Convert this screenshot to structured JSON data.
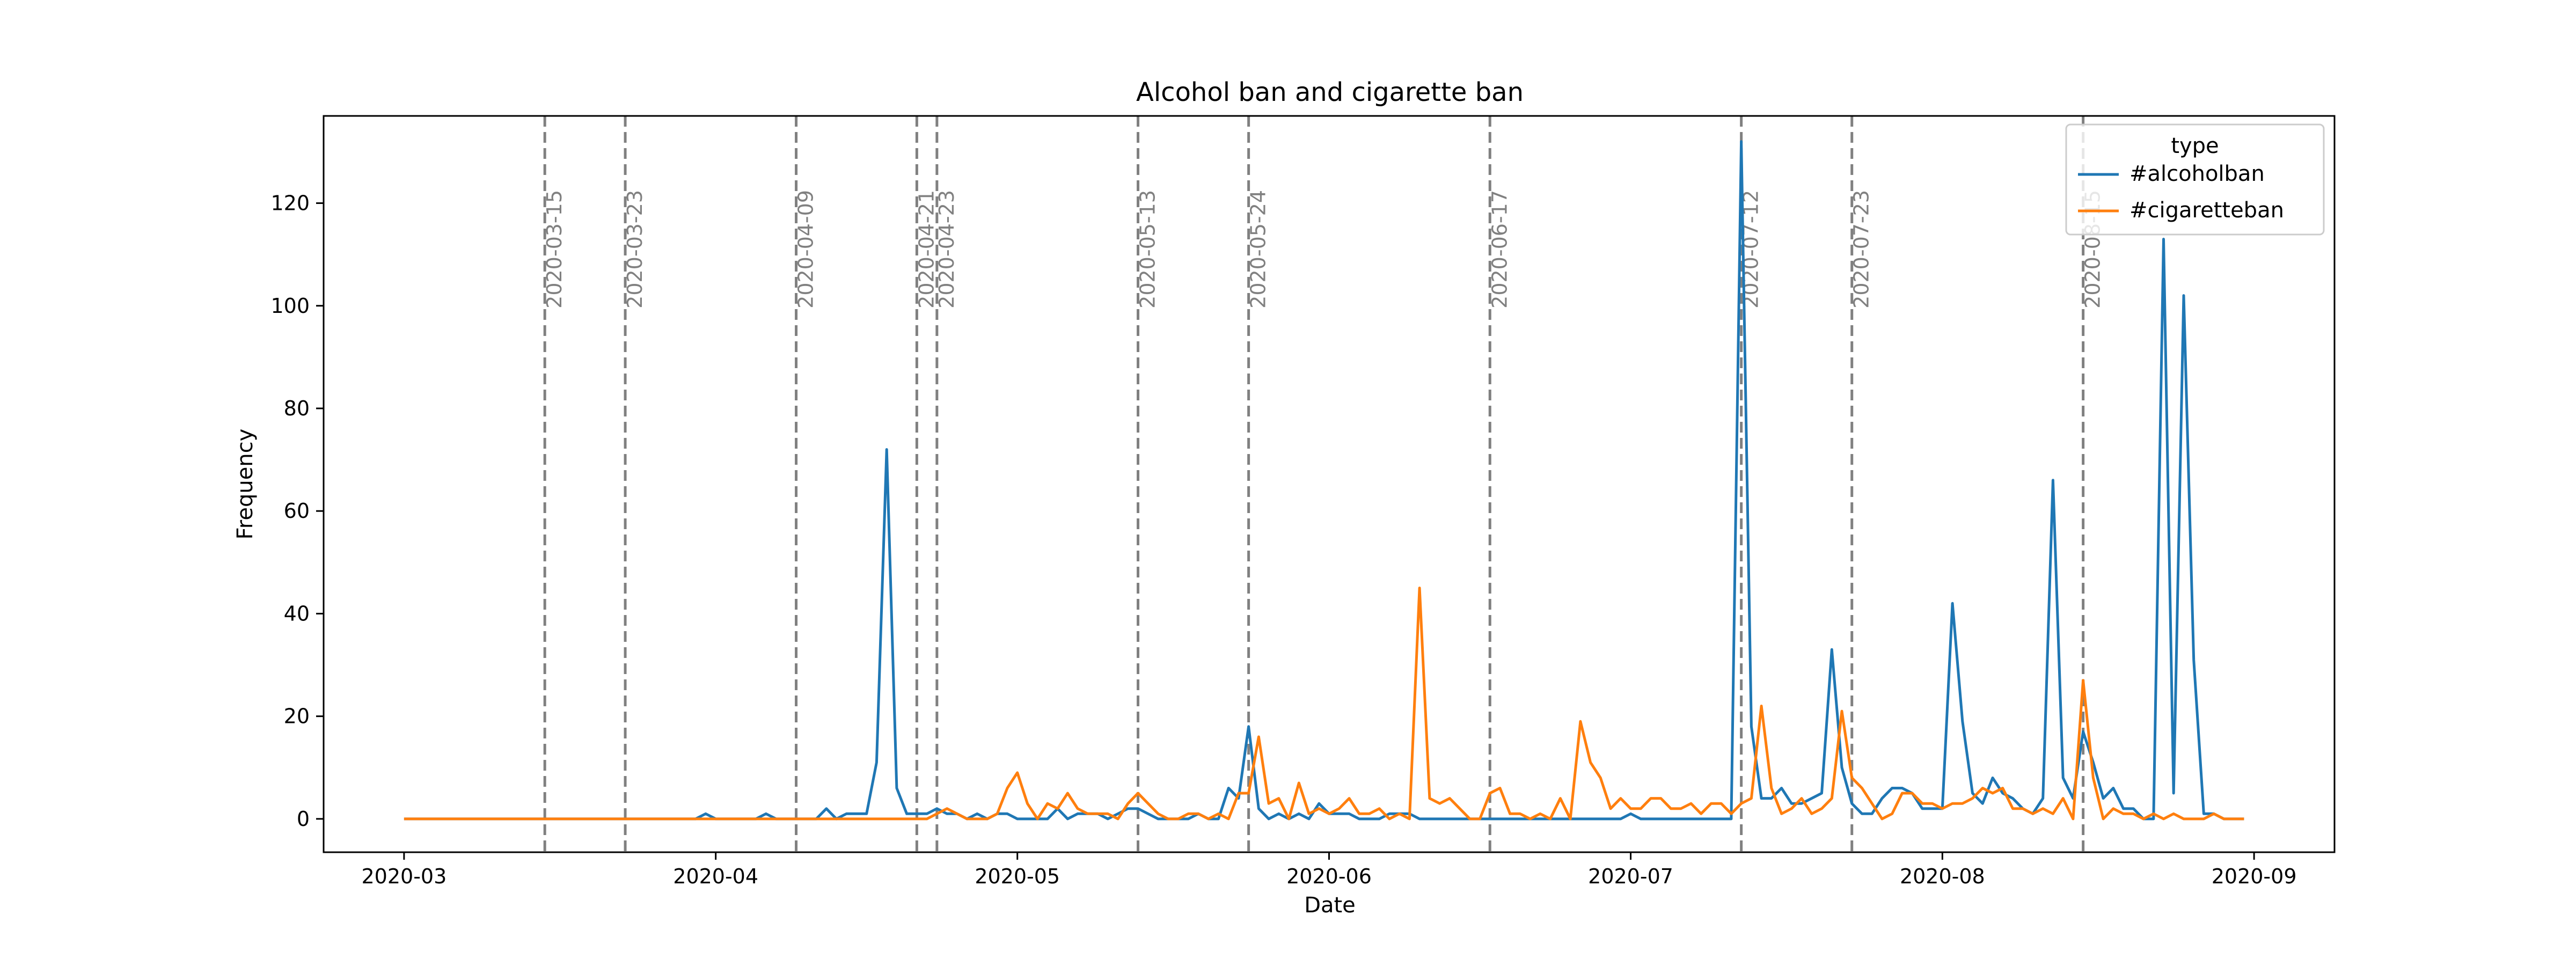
{
  "chart_data": {
    "type": "line",
    "title": "Alcohol ban and cigarette ban",
    "xlabel": "Date",
    "ylabel": "Frequency",
    "x_start": "2020-03-01",
    "x_end": "2020-08-31",
    "xlim": [
      "2020-02-22",
      "2020-09-09"
    ],
    "ylim": [
      -6.5,
      137
    ],
    "x_ticks": [
      "2020-03",
      "2020-04",
      "2020-05",
      "2020-06",
      "2020-07",
      "2020-08",
      "2020-09"
    ],
    "y_ticks": [
      0,
      20,
      40,
      60,
      80,
      100,
      120
    ],
    "grid": false,
    "legend": {
      "title": "type",
      "placement": "top-right"
    },
    "events": [
      {
        "date": "2020-03-15",
        "label": "2020-03-15"
      },
      {
        "date": "2020-03-23",
        "label": "2020-03-23"
      },
      {
        "date": "2020-04-09",
        "label": "2020-04-09"
      },
      {
        "date": "2020-04-21",
        "label": "2020-04-21"
      },
      {
        "date": "2020-04-23",
        "label": "2020-04-23"
      },
      {
        "date": "2020-05-13",
        "label": "2020-05-13"
      },
      {
        "date": "2020-05-24",
        "label": "2020-05-24"
      },
      {
        "date": "2020-06-17",
        "label": "2020-06-17"
      },
      {
        "date": "2020-07-12",
        "label": "2020-07-12"
      },
      {
        "date": "2020-07-23",
        "label": "2020-07-23"
      },
      {
        "date": "2020-08-15",
        "label": "2020-08-15"
      }
    ],
    "series": [
      {
        "name": "#alcoholban",
        "color": "#1f77b4",
        "points": [
          [
            "2020-03-01",
            0
          ],
          [
            "2020-03-30",
            0
          ],
          [
            "2020-03-31",
            1
          ],
          [
            "2020-04-01",
            0
          ],
          [
            "2020-04-05",
            0
          ],
          [
            "2020-04-06",
            1
          ],
          [
            "2020-04-07",
            0
          ],
          [
            "2020-04-11",
            0
          ],
          [
            "2020-04-12",
            2
          ],
          [
            "2020-04-13",
            0
          ],
          [
            "2020-04-14",
            1
          ],
          [
            "2020-04-15",
            1
          ],
          [
            "2020-04-16",
            1
          ],
          [
            "2020-04-17",
            11
          ],
          [
            "2020-04-18",
            72
          ],
          [
            "2020-04-19",
            6
          ],
          [
            "2020-04-20",
            1
          ],
          [
            "2020-04-21",
            1
          ],
          [
            "2020-04-22",
            1
          ],
          [
            "2020-04-23",
            2
          ],
          [
            "2020-04-24",
            1
          ],
          [
            "2020-04-25",
            1
          ],
          [
            "2020-04-26",
            0
          ],
          [
            "2020-04-27",
            1
          ],
          [
            "2020-04-28",
            0
          ],
          [
            "2020-04-29",
            1
          ],
          [
            "2020-04-30",
            1
          ],
          [
            "2020-05-01",
            0
          ],
          [
            "2020-05-02",
            0
          ],
          [
            "2020-05-03",
            0
          ],
          [
            "2020-05-04",
            0
          ],
          [
            "2020-05-05",
            2
          ],
          [
            "2020-05-06",
            0
          ],
          [
            "2020-05-07",
            1
          ],
          [
            "2020-05-08",
            1
          ],
          [
            "2020-05-09",
            1
          ],
          [
            "2020-05-10",
            0
          ],
          [
            "2020-05-11",
            1
          ],
          [
            "2020-05-12",
            2
          ],
          [
            "2020-05-13",
            2
          ],
          [
            "2020-05-14",
            1
          ],
          [
            "2020-05-15",
            0
          ],
          [
            "2020-05-16",
            0
          ],
          [
            "2020-05-17",
            0
          ],
          [
            "2020-05-18",
            0
          ],
          [
            "2020-05-19",
            1
          ],
          [
            "2020-05-20",
            0
          ],
          [
            "2020-05-21",
            0
          ],
          [
            "2020-05-22",
            6
          ],
          [
            "2020-05-23",
            4
          ],
          [
            "2020-05-24",
            18
          ],
          [
            "2020-05-25",
            2
          ],
          [
            "2020-05-26",
            0
          ],
          [
            "2020-05-27",
            1
          ],
          [
            "2020-05-28",
            0
          ],
          [
            "2020-05-29",
            1
          ],
          [
            "2020-05-30",
            0
          ],
          [
            "2020-05-31",
            3
          ],
          [
            "2020-06-01",
            1
          ],
          [
            "2020-06-02",
            1
          ],
          [
            "2020-06-03",
            1
          ],
          [
            "2020-06-04",
            0
          ],
          [
            "2020-06-05",
            0
          ],
          [
            "2020-06-06",
            0
          ],
          [
            "2020-06-07",
            1
          ],
          [
            "2020-06-08",
            1
          ],
          [
            "2020-06-09",
            1
          ],
          [
            "2020-06-10",
            0
          ],
          [
            "2020-06-30",
            0
          ],
          [
            "2020-07-01",
            1
          ],
          [
            "2020-07-02",
            0
          ],
          [
            "2020-07-10",
            0
          ],
          [
            "2020-07-11",
            0
          ],
          [
            "2020-07-12",
            132
          ],
          [
            "2020-07-13",
            18
          ],
          [
            "2020-07-14",
            4
          ],
          [
            "2020-07-15",
            4
          ],
          [
            "2020-07-16",
            6
          ],
          [
            "2020-07-17",
            3
          ],
          [
            "2020-07-18",
            3
          ],
          [
            "2020-07-19",
            4
          ],
          [
            "2020-07-20",
            5
          ],
          [
            "2020-07-21",
            33
          ],
          [
            "2020-07-22",
            10
          ],
          [
            "2020-07-23",
            3
          ],
          [
            "2020-07-24",
            1
          ],
          [
            "2020-07-25",
            1
          ],
          [
            "2020-07-26",
            4
          ],
          [
            "2020-07-27",
            6
          ],
          [
            "2020-07-28",
            6
          ],
          [
            "2020-07-29",
            5
          ],
          [
            "2020-07-30",
            2
          ],
          [
            "2020-07-31",
            2
          ],
          [
            "2020-08-01",
            2
          ],
          [
            "2020-08-02",
            42
          ],
          [
            "2020-08-03",
            19
          ],
          [
            "2020-08-04",
            5
          ],
          [
            "2020-08-05",
            3
          ],
          [
            "2020-08-06",
            8
          ],
          [
            "2020-08-07",
            5
          ],
          [
            "2020-08-08",
            4
          ],
          [
            "2020-08-09",
            2
          ],
          [
            "2020-08-10",
            1
          ],
          [
            "2020-08-11",
            4
          ],
          [
            "2020-08-12",
            66
          ],
          [
            "2020-08-13",
            8
          ],
          [
            "2020-08-14",
            4
          ],
          [
            "2020-08-15",
            17
          ],
          [
            "2020-08-16",
            11
          ],
          [
            "2020-08-17",
            4
          ],
          [
            "2020-08-18",
            6
          ],
          [
            "2020-08-19",
            2
          ],
          [
            "2020-08-20",
            2
          ],
          [
            "2020-08-21",
            0
          ],
          [
            "2020-08-22",
            0
          ],
          [
            "2020-08-23",
            113
          ],
          [
            "2020-08-24",
            5
          ],
          [
            "2020-08-25",
            102
          ],
          [
            "2020-08-26",
            31
          ],
          [
            "2020-08-27",
            1
          ],
          [
            "2020-08-28",
            1
          ],
          [
            "2020-08-29",
            0
          ],
          [
            "2020-08-31",
            0
          ]
        ]
      },
      {
        "name": "#cigaretteban",
        "color": "#ff7f0e",
        "points": [
          [
            "2020-03-01",
            0
          ],
          [
            "2020-04-21",
            0
          ],
          [
            "2020-04-22",
            0
          ],
          [
            "2020-04-23",
            1
          ],
          [
            "2020-04-24",
            2
          ],
          [
            "2020-04-25",
            1
          ],
          [
            "2020-04-26",
            0
          ],
          [
            "2020-04-27",
            0
          ],
          [
            "2020-04-28",
            0
          ],
          [
            "2020-04-29",
            1
          ],
          [
            "2020-04-30",
            6
          ],
          [
            "2020-05-01",
            9
          ],
          [
            "2020-05-02",
            3
          ],
          [
            "2020-05-03",
            0
          ],
          [
            "2020-05-04",
            3
          ],
          [
            "2020-05-05",
            2
          ],
          [
            "2020-05-06",
            5
          ],
          [
            "2020-05-07",
            2
          ],
          [
            "2020-05-08",
            1
          ],
          [
            "2020-05-09",
            1
          ],
          [
            "2020-05-10",
            1
          ],
          [
            "2020-05-11",
            0
          ],
          [
            "2020-05-12",
            3
          ],
          [
            "2020-05-13",
            5
          ],
          [
            "2020-05-14",
            3
          ],
          [
            "2020-05-15",
            1
          ],
          [
            "2020-05-16",
            0
          ],
          [
            "2020-05-17",
            0
          ],
          [
            "2020-05-18",
            1
          ],
          [
            "2020-05-19",
            1
          ],
          [
            "2020-05-20",
            0
          ],
          [
            "2020-05-21",
            1
          ],
          [
            "2020-05-22",
            0
          ],
          [
            "2020-05-23",
            5
          ],
          [
            "2020-05-24",
            5
          ],
          [
            "2020-05-25",
            16
          ],
          [
            "2020-05-26",
            3
          ],
          [
            "2020-05-27",
            4
          ],
          [
            "2020-05-28",
            0
          ],
          [
            "2020-05-29",
            7
          ],
          [
            "2020-05-30",
            1
          ],
          [
            "2020-05-31",
            2
          ],
          [
            "2020-06-01",
            1
          ],
          [
            "2020-06-02",
            2
          ],
          [
            "2020-06-03",
            4
          ],
          [
            "2020-06-04",
            1
          ],
          [
            "2020-06-05",
            1
          ],
          [
            "2020-06-06",
            2
          ],
          [
            "2020-06-07",
            0
          ],
          [
            "2020-06-08",
            1
          ],
          [
            "2020-06-09",
            0
          ],
          [
            "2020-06-10",
            45
          ],
          [
            "2020-06-11",
            4
          ],
          [
            "2020-06-12",
            3
          ],
          [
            "2020-06-13",
            4
          ],
          [
            "2020-06-14",
            2
          ],
          [
            "2020-06-15",
            0
          ],
          [
            "2020-06-16",
            0
          ],
          [
            "2020-06-17",
            5
          ],
          [
            "2020-06-18",
            6
          ],
          [
            "2020-06-19",
            1
          ],
          [
            "2020-06-20",
            1
          ],
          [
            "2020-06-21",
            0
          ],
          [
            "2020-06-22",
            1
          ],
          [
            "2020-06-23",
            0
          ],
          [
            "2020-06-24",
            4
          ],
          [
            "2020-06-25",
            0
          ],
          [
            "2020-06-26",
            19
          ],
          [
            "2020-06-27",
            11
          ],
          [
            "2020-06-28",
            8
          ],
          [
            "2020-06-29",
            2
          ],
          [
            "2020-06-30",
            4
          ],
          [
            "2020-07-01",
            2
          ],
          [
            "2020-07-02",
            2
          ],
          [
            "2020-07-03",
            4
          ],
          [
            "2020-07-04",
            4
          ],
          [
            "2020-07-05",
            2
          ],
          [
            "2020-07-06",
            2
          ],
          [
            "2020-07-07",
            3
          ],
          [
            "2020-07-08",
            1
          ],
          [
            "2020-07-09",
            3
          ],
          [
            "2020-07-10",
            3
          ],
          [
            "2020-07-11",
            1
          ],
          [
            "2020-07-12",
            3
          ],
          [
            "2020-07-13",
            4
          ],
          [
            "2020-07-14",
            22
          ],
          [
            "2020-07-15",
            6
          ],
          [
            "2020-07-16",
            1
          ],
          [
            "2020-07-17",
            2
          ],
          [
            "2020-07-18",
            4
          ],
          [
            "2020-07-19",
            1
          ],
          [
            "2020-07-20",
            2
          ],
          [
            "2020-07-21",
            4
          ],
          [
            "2020-07-22",
            21
          ],
          [
            "2020-07-23",
            8
          ],
          [
            "2020-07-24",
            6
          ],
          [
            "2020-07-25",
            3
          ],
          [
            "2020-07-26",
            0
          ],
          [
            "2020-07-27",
            1
          ],
          [
            "2020-07-28",
            5
          ],
          [
            "2020-07-29",
            5
          ],
          [
            "2020-07-30",
            3
          ],
          [
            "2020-07-31",
            3
          ],
          [
            "2020-08-01",
            2
          ],
          [
            "2020-08-02",
            3
          ],
          [
            "2020-08-03",
            3
          ],
          [
            "2020-08-04",
            4
          ],
          [
            "2020-08-05",
            6
          ],
          [
            "2020-08-06",
            5
          ],
          [
            "2020-08-07",
            6
          ],
          [
            "2020-08-08",
            2
          ],
          [
            "2020-08-09",
            2
          ],
          [
            "2020-08-10",
            1
          ],
          [
            "2020-08-11",
            2
          ],
          [
            "2020-08-12",
            1
          ],
          [
            "2020-08-13",
            4
          ],
          [
            "2020-08-14",
            0
          ],
          [
            "2020-08-15",
            27
          ],
          [
            "2020-08-16",
            8
          ],
          [
            "2020-08-17",
            0
          ],
          [
            "2020-08-18",
            2
          ],
          [
            "2020-08-19",
            1
          ],
          [
            "2020-08-20",
            1
          ],
          [
            "2020-08-21",
            0
          ],
          [
            "2020-08-22",
            1
          ],
          [
            "2020-08-23",
            0
          ],
          [
            "2020-08-24",
            1
          ],
          [
            "2020-08-25",
            0
          ],
          [
            "2020-08-26",
            0
          ],
          [
            "2020-08-27",
            0
          ],
          [
            "2020-08-28",
            1
          ],
          [
            "2020-08-29",
            0
          ],
          [
            "2020-08-31",
            0
          ]
        ]
      }
    ]
  }
}
